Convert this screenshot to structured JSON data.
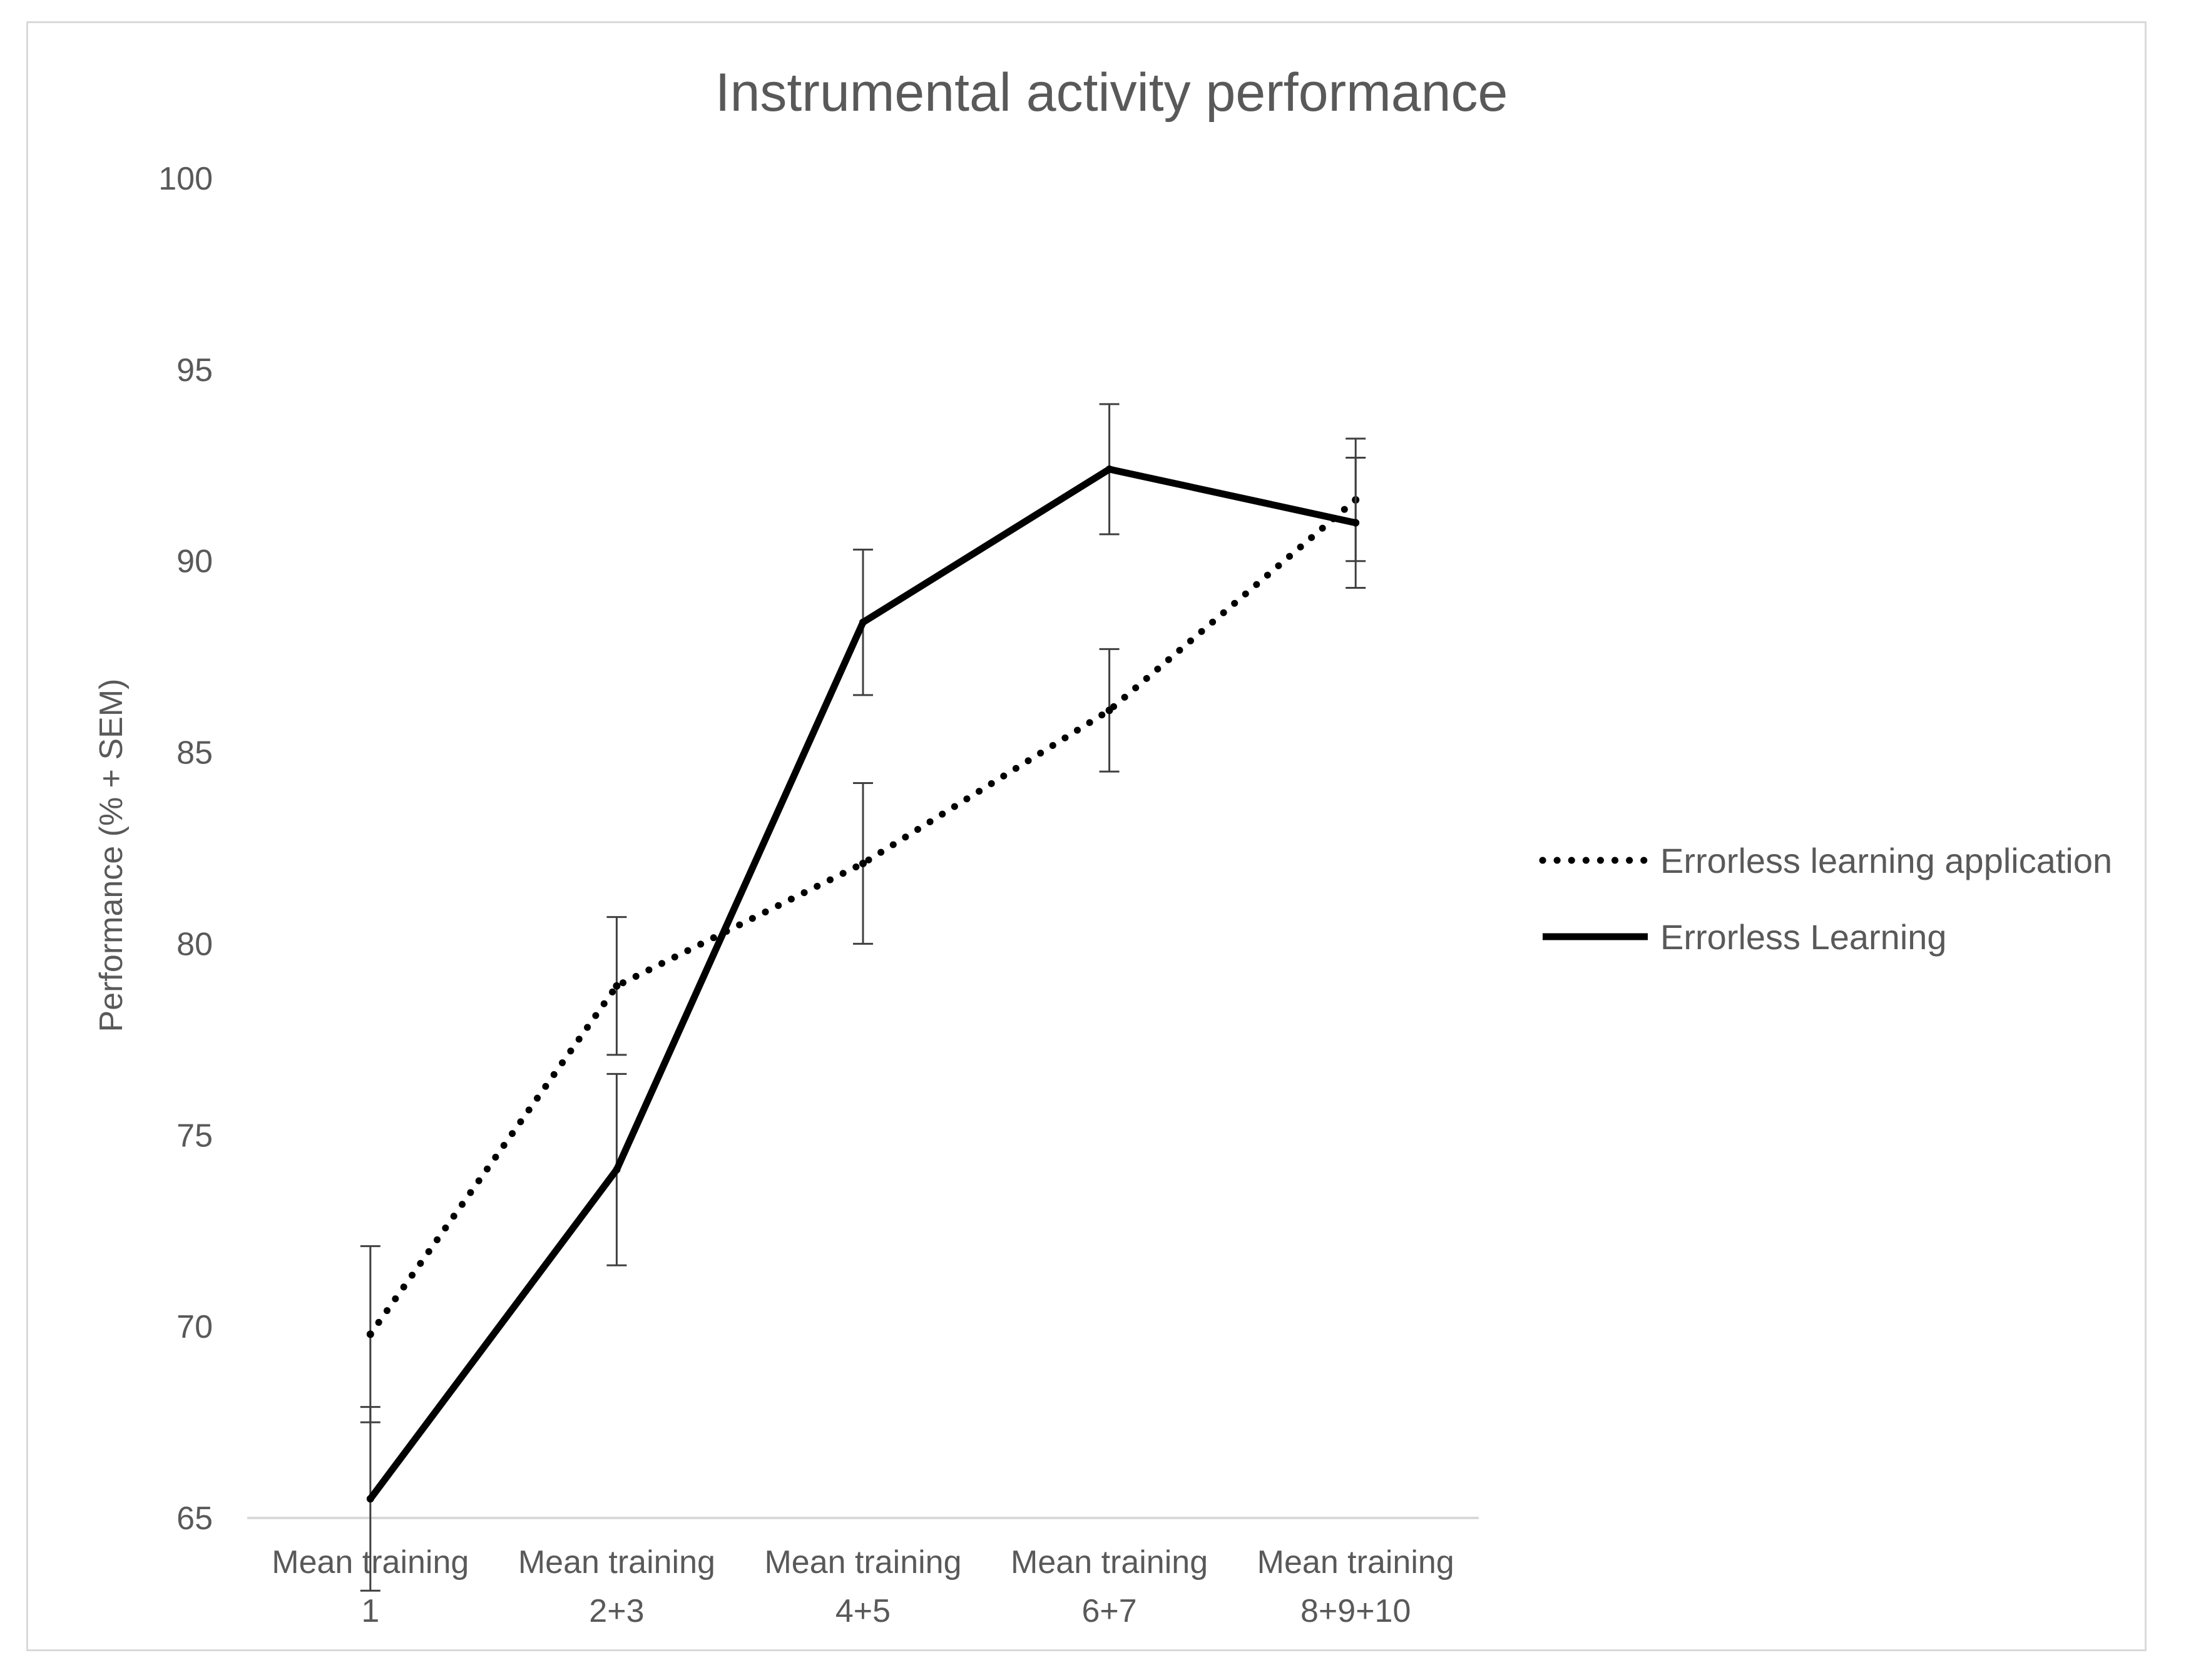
{
  "chart_data": {
    "type": "line",
    "title": "Instrumental activity performance",
    "xlabel": "",
    "ylabel": "Performance  (% + SEM)",
    "ylim": [
      65,
      100
    ],
    "yticks": [
      65,
      70,
      75,
      80,
      85,
      90,
      95,
      100
    ],
    "grid": false,
    "legend_position": "right",
    "categories": [
      [
        "Mean training",
        "1"
      ],
      [
        "Mean training",
        "2+3"
      ],
      [
        "Mean training",
        "4+5"
      ],
      [
        "Mean training",
        "6+7"
      ],
      [
        "Mean training",
        "8+9+10"
      ]
    ],
    "series": [
      {
        "name": "Errorless learning application",
        "style": "dotted",
        "color": "#000000",
        "values": [
          69.8,
          78.9,
          82.1,
          86.1,
          91.6
        ],
        "sem": [
          2.3,
          1.8,
          2.1,
          1.6,
          1.6
        ]
      },
      {
        "name": "Errorless Learning",
        "style": "solid",
        "color": "#000000",
        "values": [
          65.5,
          74.1,
          88.4,
          92.4,
          91.0
        ],
        "sem": [
          2.4,
          2.5,
          1.9,
          1.7,
          1.7
        ]
      }
    ]
  }
}
